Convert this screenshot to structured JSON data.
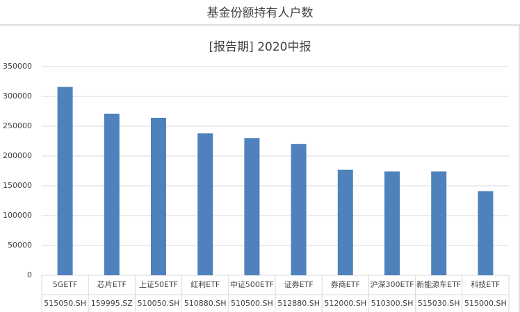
{
  "header": {
    "title": "基金份额持有人户数"
  },
  "chart_data": {
    "type": "bar",
    "title": "[报告期] 2020中报",
    "categories": [
      "5GETF",
      "芯片ETF",
      "上证50ETF",
      "红利ETF",
      "中证500ETF",
      "证券ETF",
      "券商ETF",
      "沪深300ETF",
      "新能源车ETF",
      "科技ETF"
    ],
    "category_codes": [
      "515050.SH",
      "159995.SZ",
      "510050.SH",
      "510880.SH",
      "510500.SH",
      "512880.SH",
      "512000.SH",
      "510300.SH",
      "515030.SH",
      "515000.SH"
    ],
    "values": [
      316000,
      271000,
      264000,
      238000,
      230000,
      220000,
      177000,
      174000,
      174000,
      141000
    ],
    "color": "#4f81bd",
    "ylim": [
      0,
      350000
    ],
    "yticks": [
      0,
      50000,
      100000,
      150000,
      200000,
      250000,
      300000,
      350000
    ],
    "grid": true
  }
}
